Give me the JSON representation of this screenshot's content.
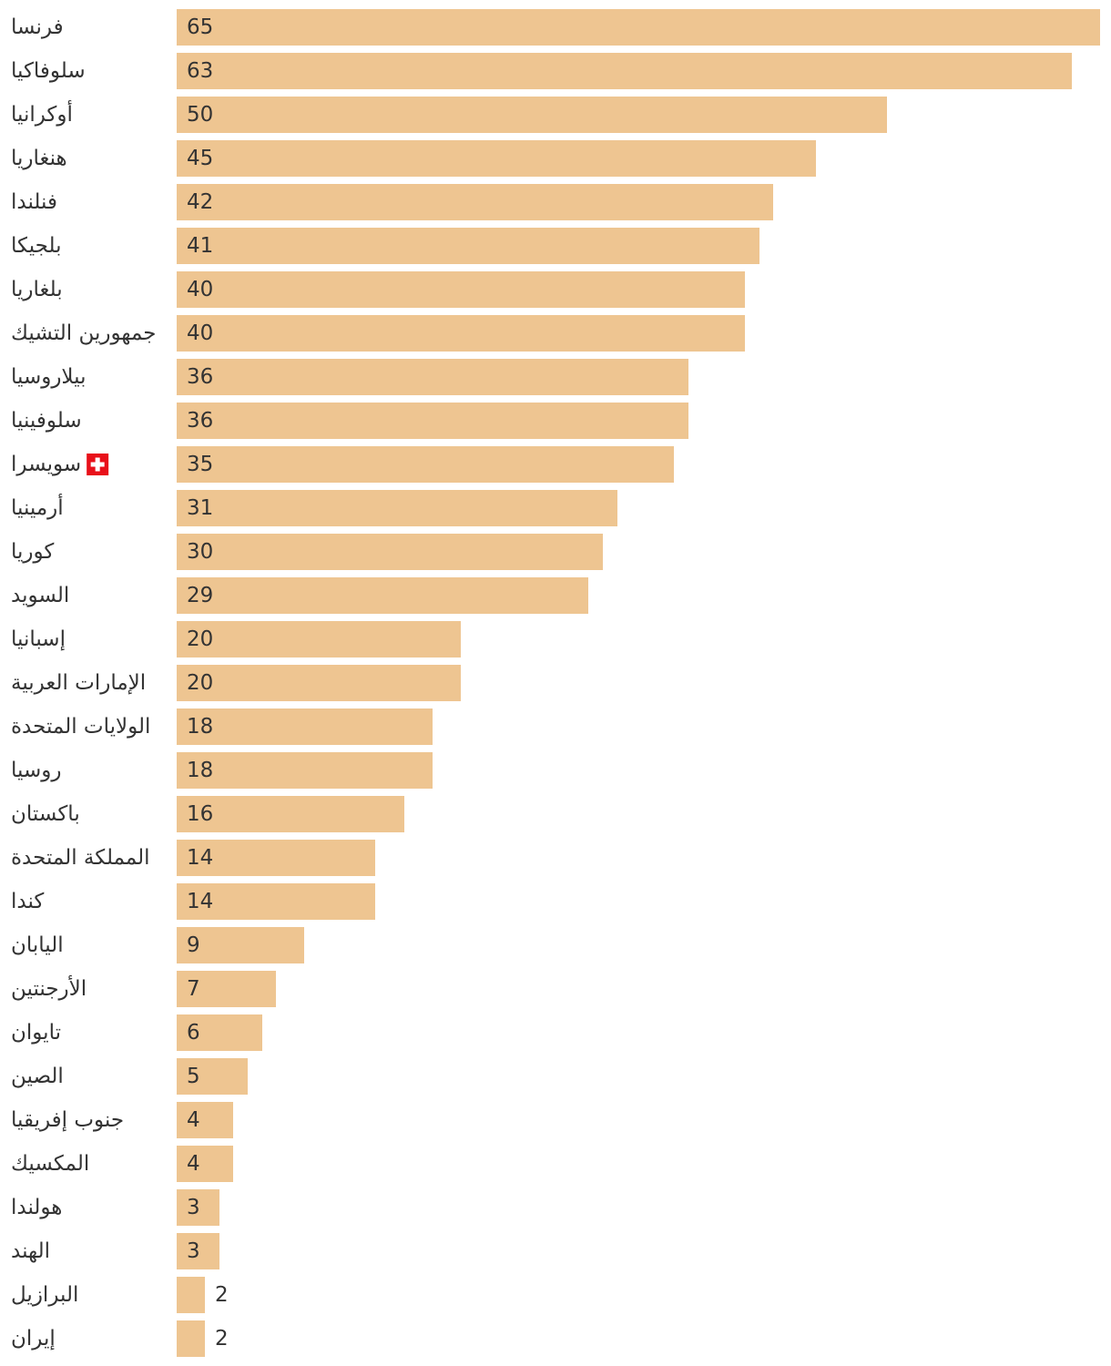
{
  "chart_data": {
    "type": "bar",
    "orientation": "horizontal",
    "title": "",
    "xlabel": "",
    "ylabel": "",
    "xlim": [
      0,
      65
    ],
    "grid": false,
    "bar_color": "#EEC591",
    "text_color": "#333333",
    "flag_color": "#E8101A",
    "highlight_category": "سويسرا",
    "highlight_icon": "swiss-flag-icon",
    "categories": [
      "فرنسا",
      "سلوفاكيا",
      "أوكرانيا",
      "هنغاريا",
      "فنلندا",
      "بلجيكا",
      "بلغاريا",
      "جمهورين التشيك",
      "بيلاروسيا",
      "سلوفينيا",
      "سويسرا",
      "أرمينيا",
      "كوريا",
      "السويد",
      "إسبانيا",
      "الإمارات العربية",
      "الولايات المتحدة",
      "روسيا",
      "باكستان",
      "المملكة المتحدة",
      "كندا",
      "اليابان",
      "الأرجنتين",
      "تايوان",
      "الصين",
      "جنوب إفريقيا",
      "المكسيك",
      "هولندا",
      "الهند",
      "البرازيل",
      "إيران"
    ],
    "values": [
      65,
      63,
      50,
      45,
      42,
      41,
      40,
      40,
      36,
      36,
      35,
      31,
      30,
      29,
      20,
      20,
      18,
      18,
      16,
      14,
      14,
      9,
      7,
      6,
      5,
      4,
      4,
      3,
      3,
      2,
      2
    ]
  }
}
